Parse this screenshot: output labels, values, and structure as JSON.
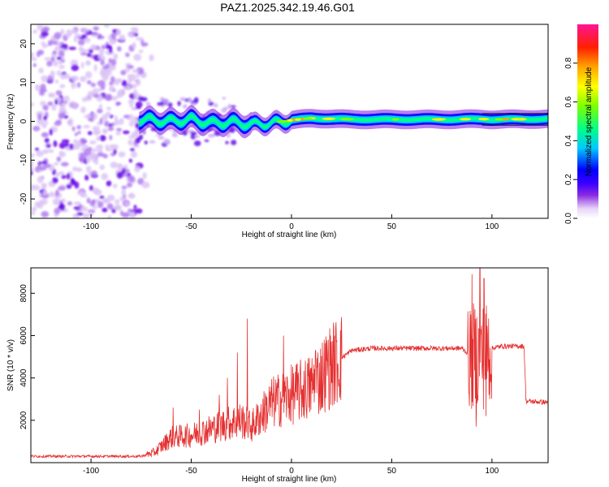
{
  "title": "PAZ1.2025.342.19.46.G01",
  "chart_data": [
    {
      "type": "heatmap",
      "title": "PAZ1.2025.342.19.46.G01",
      "xlabel": "Height of straight line (km)",
      "ylabel": "Frequency (Hz)",
      "xlim": [
        -130,
        128
      ],
      "ylim": [
        -25,
        25
      ],
      "xticks": [
        -100,
        -50,
        0,
        50,
        100
      ],
      "yticks": [
        -20,
        -10,
        0,
        10,
        20
      ],
      "colorbar": {
        "label": "Normalized spectral amplitude",
        "range": [
          0,
          1
        ],
        "ticks": [
          0.0,
          0.2,
          0.4,
          0.6,
          0.8
        ],
        "colors": [
          "#ffffff",
          "#e8d4f8",
          "#8a2be2",
          "#5a00e6",
          "#0000ff",
          "#00d0ff",
          "#00ff88",
          "#7fff00",
          "#ffff00",
          "#ffa500",
          "#ff2000",
          "#ff1493"
        ]
      },
      "ridge": {
        "description_x": [
          -75,
          -60,
          -50,
          -40,
          -30,
          -20,
          -10,
          0,
          10,
          30,
          60,
          80,
          95,
          100,
          128
        ],
        "frequency_hz": [
          0.5,
          0.0,
          0.5,
          -0.5,
          -0.2,
          -0.8,
          -0.5,
          0.3,
          0.8,
          0.5,
          0.5,
          0.5,
          0.6,
          0.5,
          0.6
        ],
        "amplitude": [
          0.25,
          0.3,
          0.35,
          0.3,
          0.3,
          0.35,
          0.5,
          0.7,
          0.8,
          0.55,
          0.5,
          0.65,
          0.6,
          0.75,
          0.8
        ]
      },
      "noise_region_km": [
        -130,
        -75
      ]
    },
    {
      "type": "line",
      "xlabel": "Height of straight line (km)",
      "ylabel": "SNR (10 * v/v)",
      "xlim": [
        -130,
        128
      ],
      "ylim": [
        0,
        9200
      ],
      "xticks": [
        -100,
        -50,
        0,
        50,
        100
      ],
      "yticks": [
        2000,
        4000,
        6000,
        8000
      ],
      "color": "#e53030",
      "envelope_x": [
        -130,
        -75,
        -68,
        -60,
        -50,
        -40,
        -30,
        -25,
        -20,
        -10,
        0,
        10,
        20,
        30,
        40,
        50,
        60,
        70,
        85,
        90,
        95,
        100,
        105,
        116,
        117,
        128
      ],
      "envelope_y": [
        300,
        300,
        500,
        1200,
        1300,
        1600,
        1900,
        2000,
        1700,
        2800,
        3200,
        3600,
        4600,
        5300,
        5400,
        5400,
        5400,
        5400,
        5400,
        5000,
        5000,
        5400,
        5500,
        5500,
        2900,
        2850
      ],
      "spikes": [
        {
          "x": -59,
          "y": 2600
        },
        {
          "x": -46,
          "y": 2500
        },
        {
          "x": -36,
          "y": 3200
        },
        {
          "x": -32,
          "y": 4000
        },
        {
          "x": -27,
          "y": 5200
        },
        {
          "x": -22,
          "y": 6800
        },
        {
          "x": -4,
          "y": 6000
        },
        {
          "x": 12,
          "y": 5300
        },
        {
          "x": 18,
          "y": 4500
        },
        {
          "x": 90,
          "y": 8900
        },
        {
          "x": 94,
          "y": 9200
        },
        {
          "x": 96,
          "y": 8700
        },
        {
          "x": 92,
          "y": 1700
        },
        {
          "x": 97,
          "y": 2200
        }
      ]
    }
  ]
}
